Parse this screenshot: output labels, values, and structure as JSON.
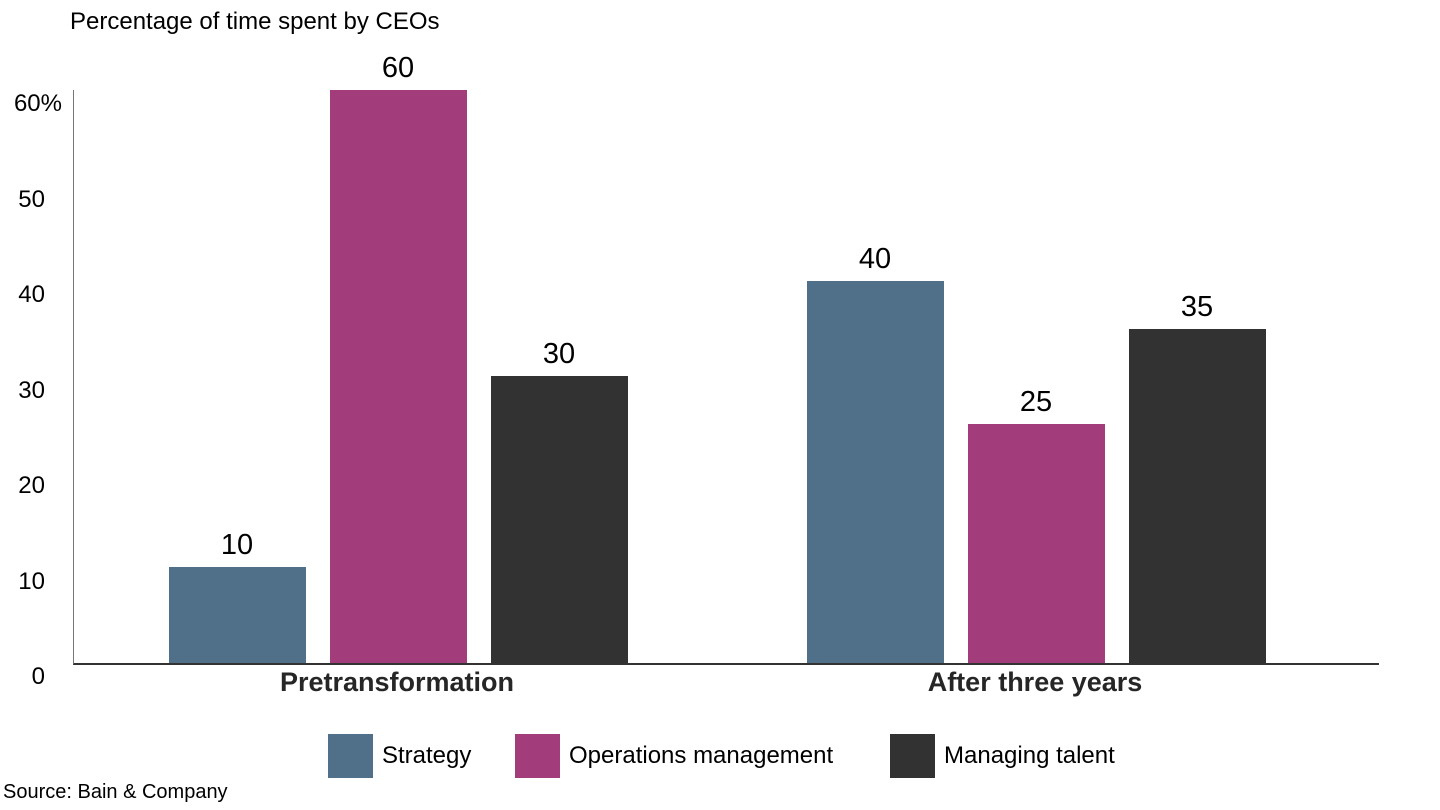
{
  "chart_data": {
    "type": "bar",
    "title": "Percentage of time spent by CEOs",
    "categories": [
      "Pretransformation",
      "After three years"
    ],
    "series": [
      {
        "name": "Strategy",
        "color": "#507089",
        "values": [
          10,
          40
        ]
      },
      {
        "name": "Operations management",
        "color": "#a33c7a",
        "values": [
          60,
          25
        ]
      },
      {
        "name": "Managing talent",
        "color": "#323232",
        "values": [
          30,
          35
        ]
      }
    ],
    "ylim": [
      0,
      60
    ],
    "yticks": [
      {
        "label": "60%",
        "value": 60
      },
      {
        "label": "50",
        "value": 50
      },
      {
        "label": "40",
        "value": 40
      },
      {
        "label": "30",
        "value": 30
      },
      {
        "label": "20",
        "value": 20
      },
      {
        "label": "10",
        "value": 10
      },
      {
        "label": "0",
        "value": 0
      }
    ],
    "grid": false,
    "legend_position": "bottom",
    "show_data_labels": true
  },
  "source": "Source: Bain & Company"
}
